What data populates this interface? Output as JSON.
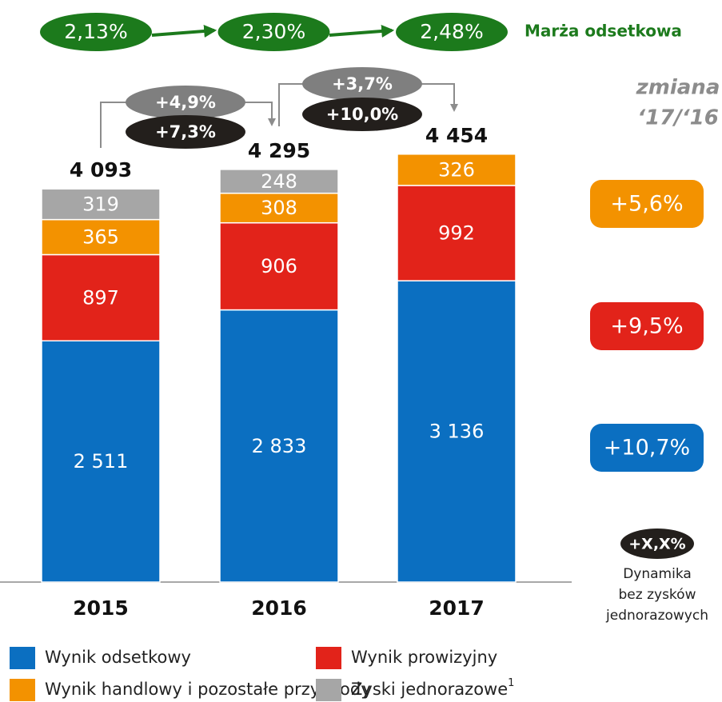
{
  "chart_data": {
    "type": "stacked_bar",
    "categories": [
      "2015",
      "2016",
      "2017"
    ],
    "ylim": [
      0,
      6000
    ],
    "series": [
      {
        "name": "Wynik odsetkowy",
        "color": "#0b6fc1",
        "values": [
          2511,
          2833,
          3136
        ],
        "value_labels": [
          "2 511",
          "2 833",
          "3 136"
        ]
      },
      {
        "name": "Wynik prowizyjny",
        "color": "#e2231a",
        "values": [
          897,
          906,
          992
        ],
        "value_labels": [
          "897",
          "906",
          "992"
        ]
      },
      {
        "name": "Wynik handlowy i pozostałe przychody",
        "color": "#f39200",
        "values": [
          365,
          308,
          326
        ],
        "value_labels": [
          "365",
          "308",
          "326"
        ]
      },
      {
        "name": "Zyski jednorazowe",
        "footnote": "1",
        "color": "#a6a6a6",
        "values": [
          319,
          248,
          null
        ],
        "value_labels": [
          "319",
          "248",
          null
        ]
      }
    ],
    "totals": [
      4093,
      4295,
      4454
    ],
    "total_labels": [
      "4 093",
      "4 295",
      "4 454"
    ],
    "margin": {
      "label": "Marża odsetkowa",
      "values": [
        "2,13%",
        "2,30%",
        "2,48%"
      ],
      "color": "#1c7a1c"
    },
    "changes": [
      {
        "total": "+4,9%",
        "adjusted": "+7,3%"
      },
      {
        "total": "+3,7%",
        "adjusted": "+10,0%"
      }
    ],
    "side": {
      "title": [
        "zmiana",
        "‘17/‘16"
      ],
      "values": [
        "+5,6%",
        "+9,5%",
        "+10,7%"
      ],
      "badge": "+X,X%",
      "note": [
        "Dynamika",
        "bez zysków",
        "jednorazowych"
      ]
    }
  }
}
